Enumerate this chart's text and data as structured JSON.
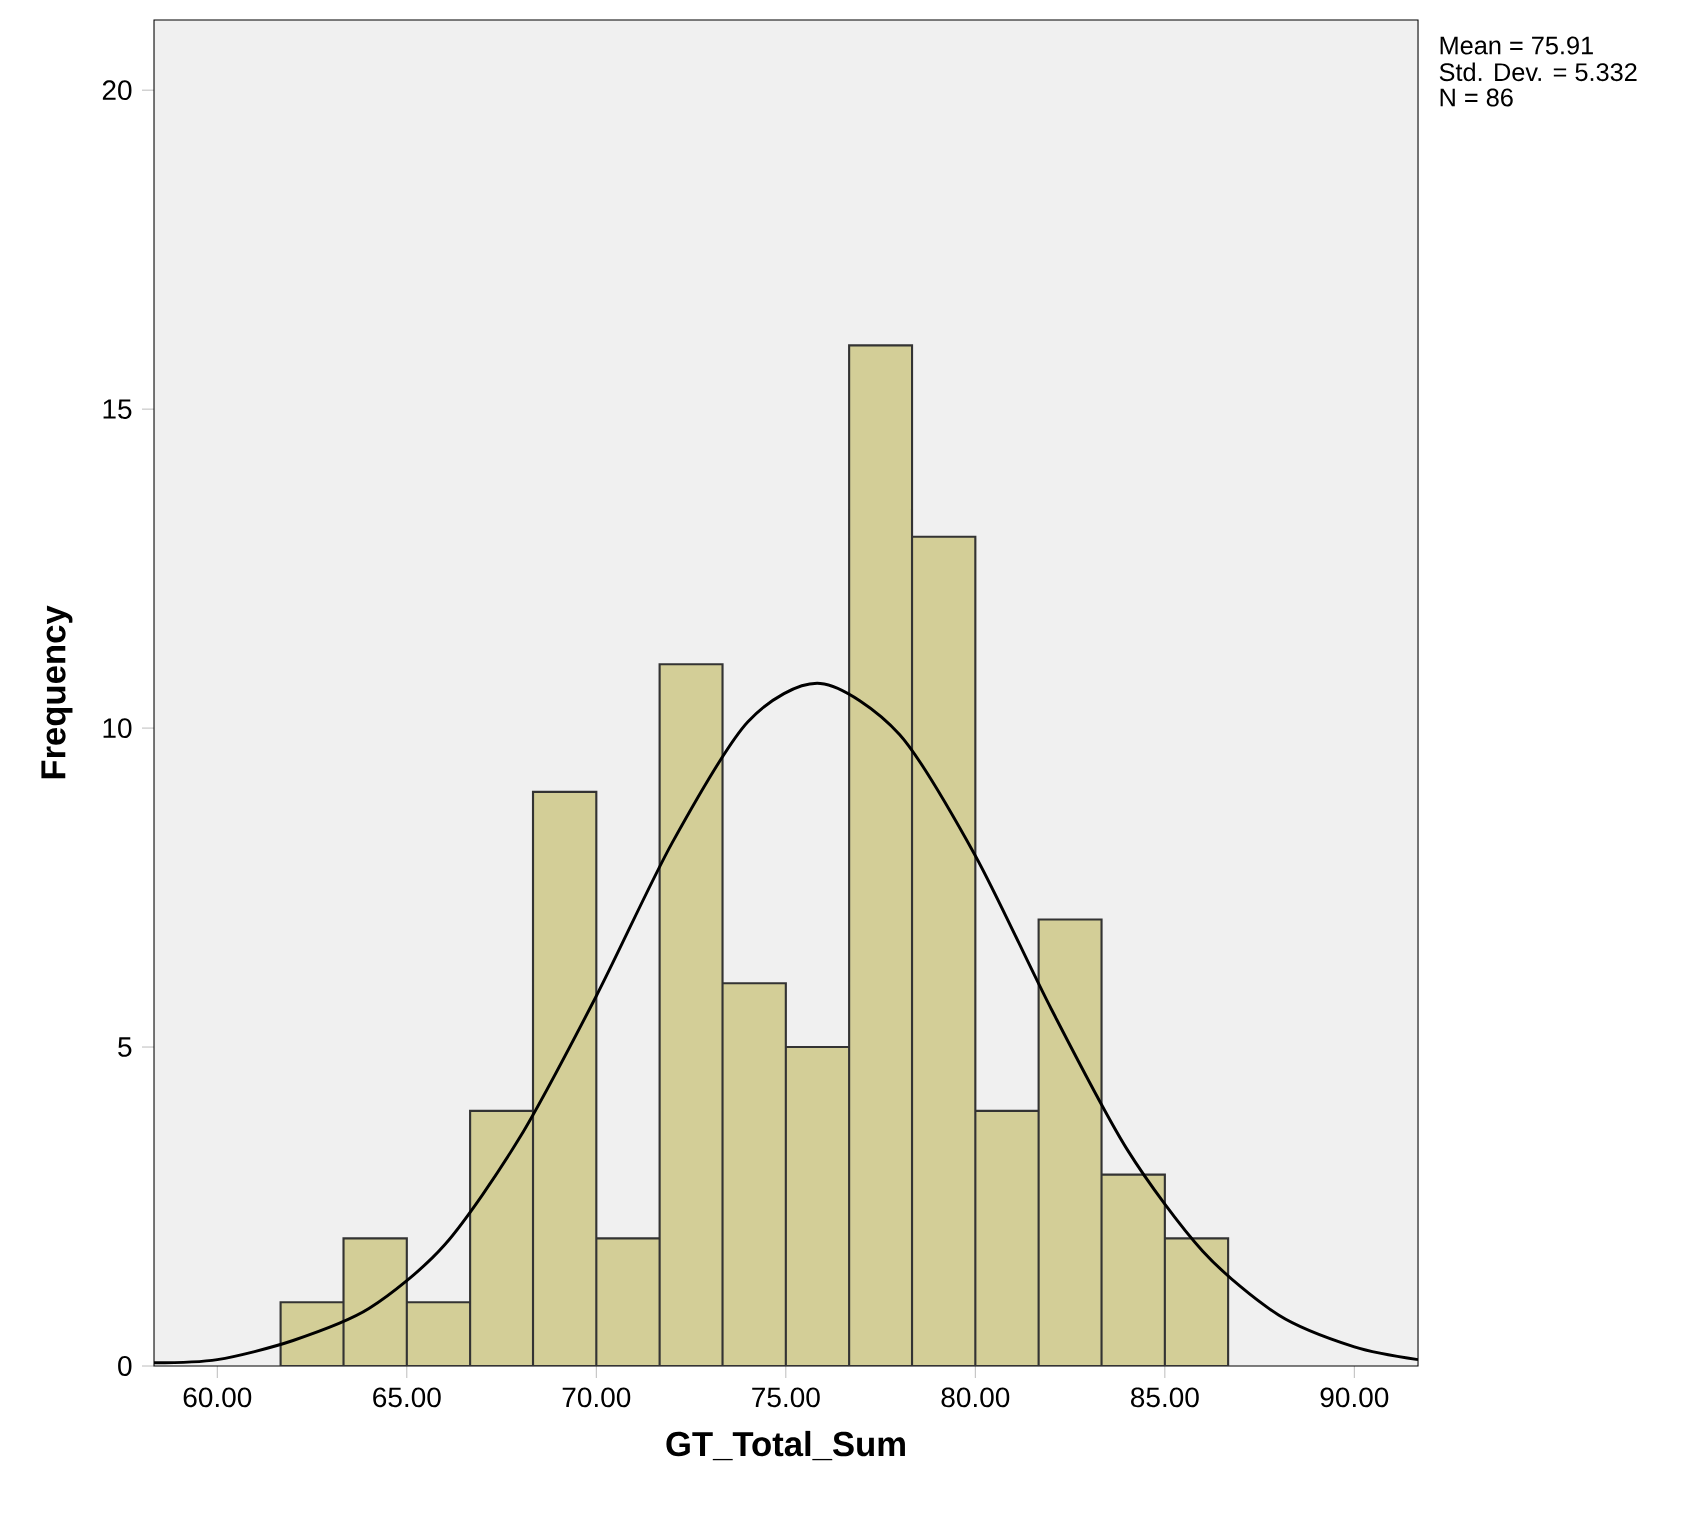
{
  "chart_data": {
    "type": "histogram",
    "xlabel": "GT_Total_Sum",
    "ylabel": "Frequency",
    "annotations": [
      "Mean = 75.91",
      "Std. Dev. = 5.332",
      "N = 86"
    ],
    "xlim": [
      58.33,
      91.68
    ],
    "ylim": [
      0,
      21.1
    ],
    "xticks": [
      {
        "value": 60,
        "label": "60.00"
      },
      {
        "value": 65,
        "label": "65.00"
      },
      {
        "value": 70,
        "label": "70.00"
      },
      {
        "value": 75,
        "label": "75.00"
      },
      {
        "value": 80,
        "label": "80.00"
      },
      {
        "value": 85,
        "label": "85.00"
      },
      {
        "value": 90,
        "label": "90.00"
      }
    ],
    "yticks": [
      0,
      5,
      10,
      15,
      20
    ],
    "series": [
      {
        "color": "#d3ce97",
        "bins": [
          61.67,
          63.33,
          65,
          66.67,
          68.33,
          70,
          71.67,
          73.33,
          75,
          76.67,
          78.33,
          80,
          81.67,
          83.33,
          85,
          86.67
        ],
        "values": [
          1,
          2,
          1,
          4,
          9,
          2,
          11,
          6,
          5,
          16,
          13,
          4,
          7,
          3,
          2
        ]
      },
      {
        "type": "line",
        "color": "#000000",
        "x": [
          58.33,
          60,
          62,
          64,
          66,
          68,
          70,
          72,
          74,
          75.91,
          78,
          80,
          82,
          84,
          86,
          88,
          90,
          91.68
        ],
        "values": [
          0.05,
          0.1,
          0.4,
          0.9,
          1.9,
          3.6,
          5.8,
          8.2,
          10.1,
          10.7,
          9.9,
          8.0,
          5.6,
          3.4,
          1.8,
          0.8,
          0.3,
          0.1
        ]
      }
    ]
  }
}
